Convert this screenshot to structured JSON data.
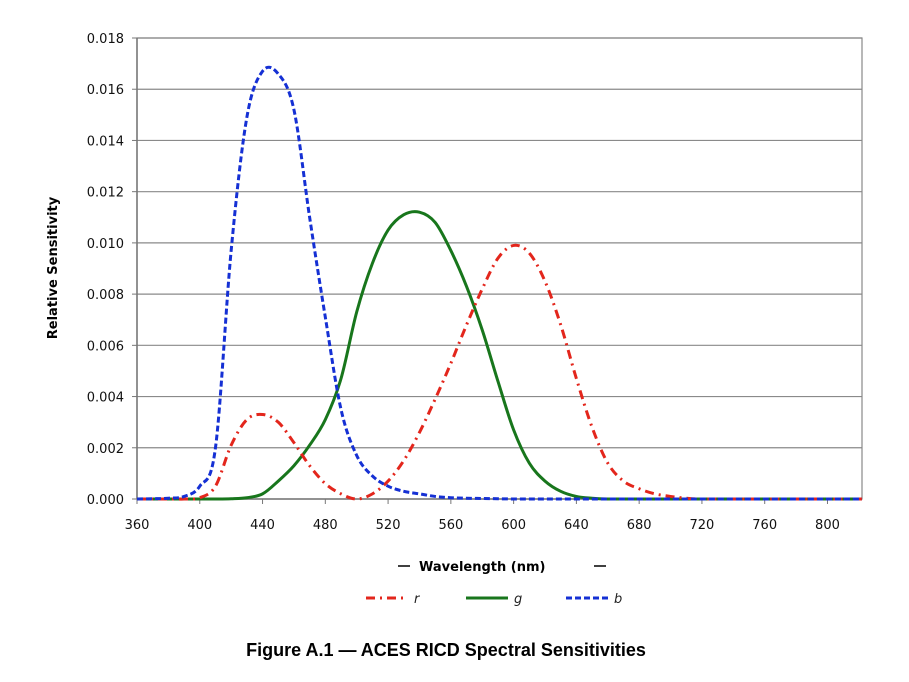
{
  "chart_data": {
    "type": "line",
    "title": "",
    "caption": "Figure A.1 — ACES RICD Spectral Sensitivities",
    "xlabel": "Wavelength (nm)",
    "ylabel": "Relative Sensitivity",
    "xlim": [
      360,
      822
    ],
    "ylim": [
      0,
      0.018
    ],
    "grid": "horizontal",
    "legend_position": "bottom",
    "x_ticks": [
      "360",
      "400",
      "440",
      "480",
      "520",
      "560",
      "600",
      "640",
      "680",
      "720",
      "760",
      "800"
    ],
    "y_ticks": [
      "0.000",
      "0.002",
      "0.004",
      "0.006",
      "0.008",
      "0.010",
      "0.012",
      "0.014",
      "0.016",
      "0.018"
    ],
    "x": [
      360,
      370,
      380,
      390,
      400,
      410,
      420,
      430,
      440,
      450,
      460,
      470,
      480,
      490,
      500,
      510,
      520,
      530,
      540,
      550,
      560,
      570,
      580,
      590,
      600,
      610,
      620,
      630,
      640,
      650,
      660,
      670,
      680,
      690,
      700,
      710,
      720,
      760,
      800,
      822
    ],
    "series": [
      {
        "name": "r",
        "color": "#e3261c",
        "style": "dashdot",
        "values": [
          0,
          0,
          0,
          0,
          5e-05,
          0.0005,
          0.0021,
          0.0031,
          0.0033,
          0.003,
          0.0022,
          0.0013,
          0.0006,
          0.0002,
          0,
          0.0002,
          0.0007,
          0.0015,
          0.0026,
          0.0039,
          0.0053,
          0.0068,
          0.0082,
          0.0094,
          0.0099,
          0.0096,
          0.0085,
          0.0068,
          0.0047,
          0.0028,
          0.0014,
          0.0007,
          0.0004,
          0.0002,
          0.0001,
          3e-05,
          0,
          0,
          0,
          0
        ]
      },
      {
        "name": "g",
        "color": "#18761c",
        "style": "solid",
        "values": [
          0,
          0,
          0,
          0,
          0,
          0,
          1e-05,
          5e-05,
          0.0002,
          0.0007,
          0.0013,
          0.0021,
          0.0031,
          0.0047,
          0.0073,
          0.0092,
          0.0105,
          0.0111,
          0.0112,
          0.0108,
          0.0097,
          0.0083,
          0.0066,
          0.0046,
          0.0027,
          0.0014,
          0.0007,
          0.0003,
          0.0001,
          3e-05,
          0,
          0,
          0,
          0,
          0,
          0,
          0,
          0,
          0,
          0
        ]
      },
      {
        "name": "b",
        "color": "#1530d4",
        "style": "dashed",
        "values": [
          0,
          1e-05,
          3e-05,
          0.0001,
          0.0005,
          0.002,
          0.0097,
          0.0149,
          0.0167,
          0.0166,
          0.0152,
          0.011,
          0.0071,
          0.0035,
          0.0017,
          0.0009,
          0.0005,
          0.0003,
          0.0002,
          0.0001,
          5e-05,
          3e-05,
          2e-05,
          1e-05,
          0,
          0,
          0,
          0,
          0,
          0,
          0,
          0,
          0,
          0,
          0,
          0,
          0,
          0,
          0,
          0
        ]
      }
    ]
  }
}
